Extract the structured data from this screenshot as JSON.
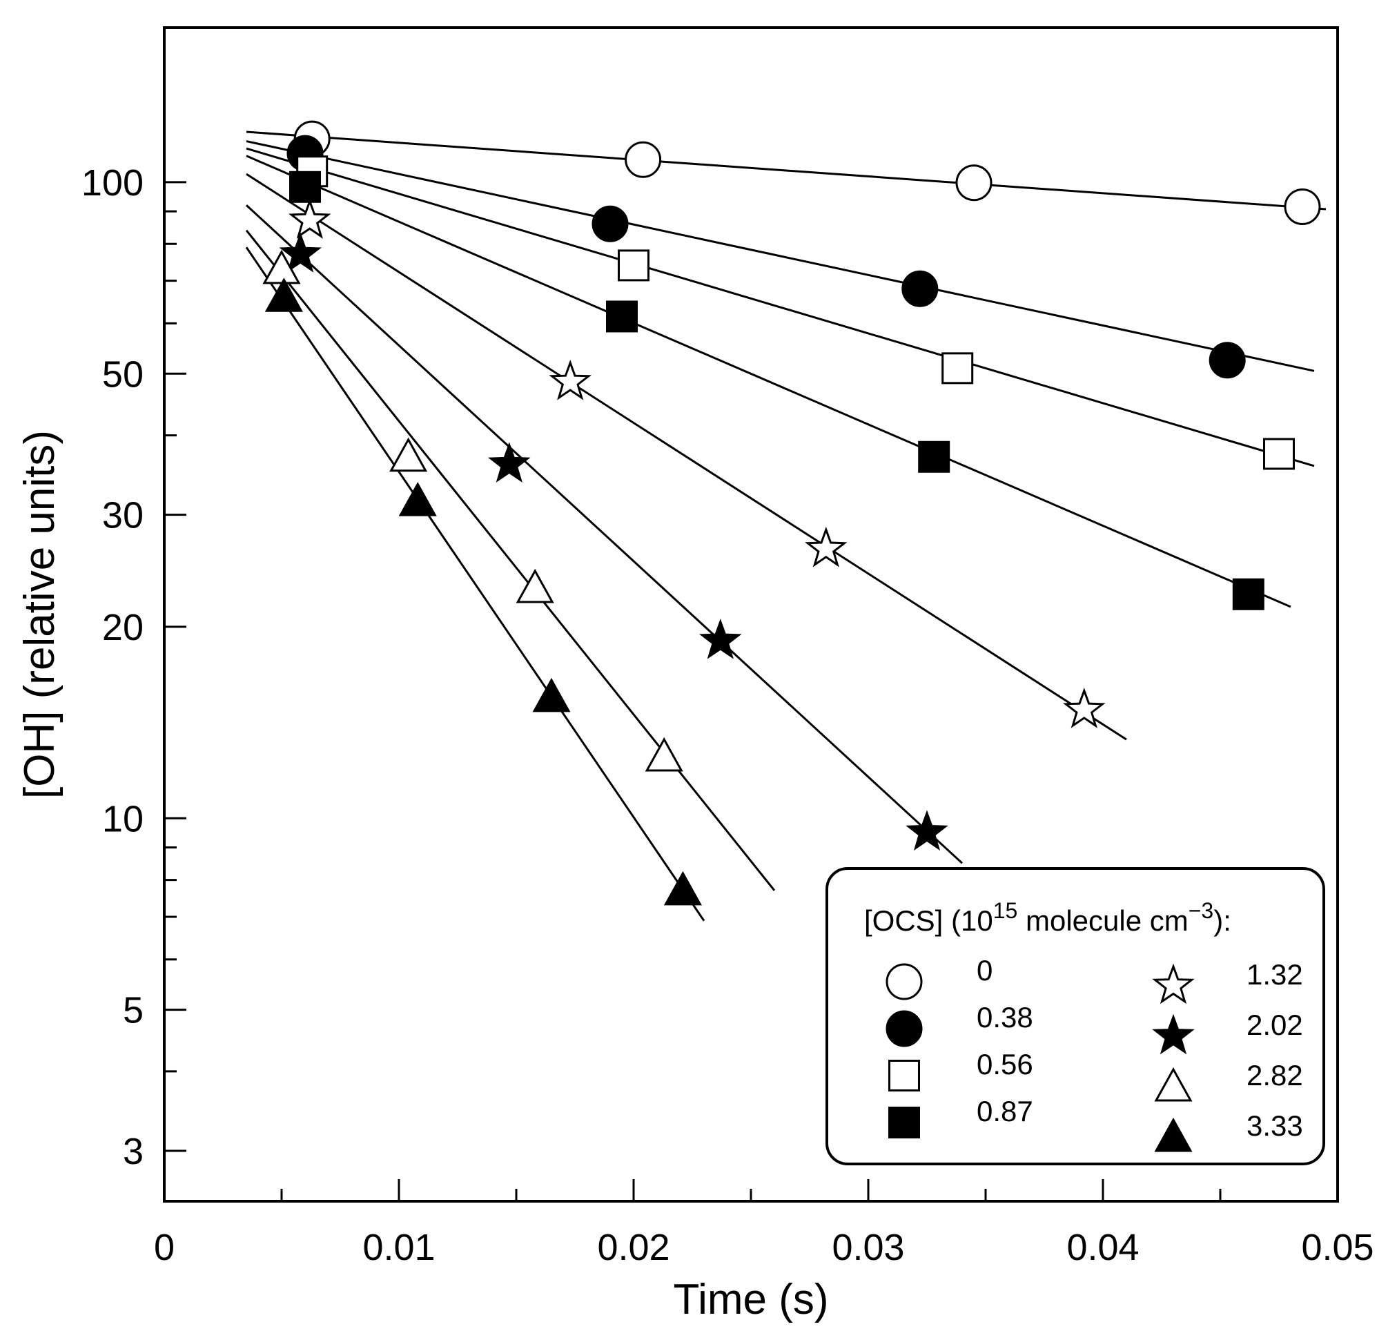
{
  "chart_data": {
    "type": "scatter",
    "yscale": "log",
    "title": "",
    "xlabel": "Time (s)",
    "ylabel": "[OH] (relative units)",
    "xlim": [
      0,
      0.05
    ],
    "ylim": [
      2.5,
      175
    ],
    "x_ticks": [
      0,
      0.01,
      0.02,
      0.03,
      0.04,
      0.05
    ],
    "x_tick_labels": [
      "0",
      "0.01",
      "0.02",
      "0.03",
      "0.04",
      "0.05"
    ],
    "x_minor_ticks": [
      0.005,
      0.015,
      0.025,
      0.035,
      0.045
    ],
    "y_ticks": [
      3,
      5,
      10,
      20,
      30,
      50,
      100
    ],
    "y_tick_labels": [
      "3",
      "5",
      "10",
      "20",
      "30",
      "50",
      "100"
    ],
    "y_minor_ticks": [
      4,
      6,
      7,
      8,
      9,
      40,
      60,
      70,
      80,
      90
    ],
    "legend": {
      "title_parts": {
        "pre": "[OCS] (10",
        "exp1": "15",
        "mid": " molecule cm",
        "exp2": "−3",
        "post": "):"
      },
      "position": "bottom-right"
    },
    "series": [
      {
        "name": "0",
        "marker": "circle-open",
        "x": [
          0.0063,
          0.0204,
          0.0345,
          0.0485
        ],
        "y": [
          117,
          108.5,
          99.8,
          91.5
        ],
        "fit": {
          "x": [
            0.0035,
            0.0495
          ],
          "y": [
            120,
            90.7
          ]
        }
      },
      {
        "name": "0.38",
        "marker": "circle-filled",
        "x": [
          0.006,
          0.019,
          0.0322,
          0.0453
        ],
        "y": [
          111,
          86,
          68,
          52.5
        ],
        "fit": {
          "x": [
            0.0035,
            0.049
          ],
          "y": [
            116,
            50.5
          ]
        }
      },
      {
        "name": "0.56",
        "marker": "square-open",
        "x": [
          0.0063,
          0.02,
          0.0338,
          0.0475
        ],
        "y": [
          104,
          74,
          51,
          37.4
        ],
        "fit": {
          "x": [
            0.0035,
            0.049
          ],
          "y": [
            113,
            35.8
          ]
        }
      },
      {
        "name": "0.87",
        "marker": "square-filled",
        "x": [
          0.006,
          0.0195,
          0.0328,
          0.0462
        ],
        "y": [
          98.3,
          61.5,
          37,
          22.5
        ],
        "fit": {
          "x": [
            0.0035,
            0.048
          ],
          "y": [
            110,
            21.5
          ]
        }
      },
      {
        "name": "1.32",
        "marker": "star-open",
        "x": [
          0.0062,
          0.0173,
          0.0282,
          0.0392
        ],
        "y": [
          87,
          48.5,
          26.5,
          14.8
        ],
        "fit": {
          "x": [
            0.0035,
            0.041
          ],
          "y": [
            103,
            13.3
          ]
        }
      },
      {
        "name": "2.02",
        "marker": "star-filled",
        "x": [
          0.0058,
          0.0147,
          0.0237,
          0.0325
        ],
        "y": [
          77,
          36,
          19,
          9.5
        ],
        "fit": {
          "x": [
            0.0035,
            0.034
          ],
          "y": [
            92,
            8.5
          ]
        }
      },
      {
        "name": "2.82",
        "marker": "triangle-open",
        "x": [
          0.005,
          0.0104,
          0.0158,
          0.0213
        ],
        "y": [
          73,
          37,
          23,
          12.5
        ],
        "fit": {
          "x": [
            0.0035,
            0.026
          ],
          "y": [
            84,
            7.7
          ]
        }
      },
      {
        "name": "3.33",
        "marker": "triangle-filled",
        "x": [
          0.0051,
          0.0108,
          0.0165,
          0.0221
        ],
        "y": [
          66,
          31.5,
          15.5,
          7.7
        ],
        "fit": {
          "x": [
            0.0035,
            0.023
          ],
          "y": [
            79,
            6.9
          ]
        }
      }
    ]
  }
}
